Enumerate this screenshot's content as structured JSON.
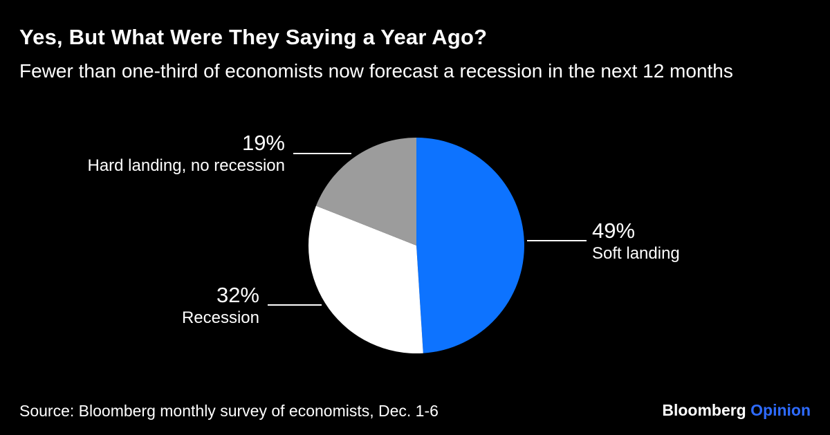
{
  "chart_data": {
    "type": "pie",
    "title": "Yes, But What Were They Saying a Year Ago?",
    "subtitle": "Fewer than one-third of economists now forecast a recession in the next 12 months",
    "start_angle_deg": 0,
    "direction": "clockwise",
    "background": "#000000",
    "legend_position": "callout-labels",
    "slices": [
      {
        "id": "soft-landing",
        "label": "Soft landing",
        "pct_label": "49%",
        "value": 49,
        "color": "#0d73ff"
      },
      {
        "id": "recession",
        "label": "Recession",
        "pct_label": "32%",
        "value": 32,
        "color": "#ffffff"
      },
      {
        "id": "hard-landing",
        "label": "Hard landing, no recession",
        "pct_label": "19%",
        "value": 19,
        "color": "#9c9c9c"
      }
    ]
  },
  "footer": {
    "source": "Source: Bloomberg monthly survey of economists, Dec. 1-6",
    "brand": "Bloomberg",
    "brand_suffix": "Opinion",
    "brand_suffix_color": "#2e6bff"
  }
}
